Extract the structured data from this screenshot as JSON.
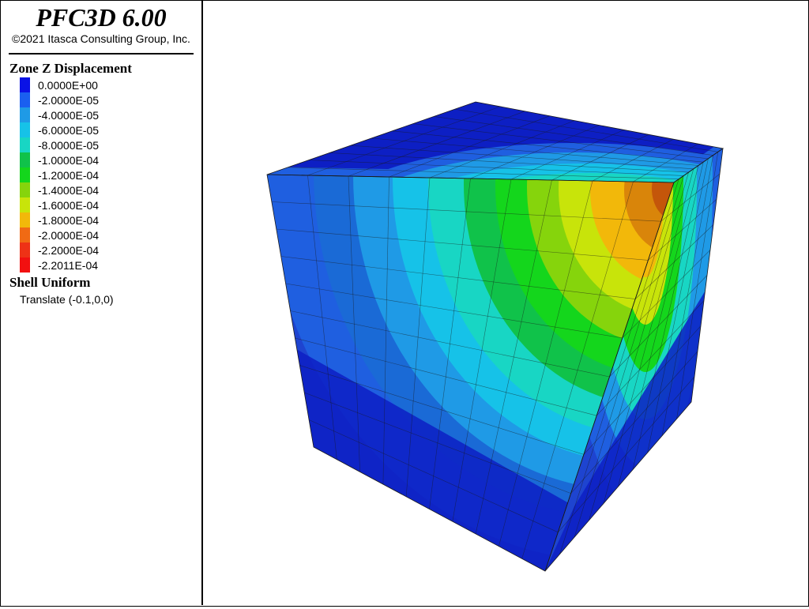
{
  "app": {
    "title": "PFC3D 6.00",
    "copyright": "©2021 Itasca Consulting Group, Inc."
  },
  "legend": {
    "zone_heading": "Zone Z Displacement",
    "contours": [
      {
        "label": "0.0000E+00",
        "color": "#0a12e6"
      },
      {
        "label": "-2.0000E-05",
        "color": "#1a5ff0"
      },
      {
        "label": "-4.0000E-05",
        "color": "#1f9ae6"
      },
      {
        "label": "-6.0000E-05",
        "color": "#16c2e8"
      },
      {
        "label": "-8.0000E-05",
        "color": "#18d6c4"
      },
      {
        "label": "-1.0000E-04",
        "color": "#10c24a"
      },
      {
        "label": "-1.2000E-04",
        "color": "#14d61c"
      },
      {
        "label": "-1.4000E-04",
        "color": "#86d40c"
      },
      {
        "label": "-1.6000E-04",
        "color": "#c8e40a"
      },
      {
        "label": "-1.8000E-04",
        "color": "#f2b80a"
      },
      {
        "label": "-2.0000E-04",
        "color": "#f06a14"
      },
      {
        "label": "-2.2000E-04",
        "color": "#ee3216"
      },
      {
        "label": "-2.2011E-04",
        "color": "#f21010"
      }
    ],
    "shell_heading": "Shell Uniform",
    "shell_item": "Translate (-0.1,0,0)"
  },
  "model": {
    "face_colors": {
      "top_outer": "#1f5fe0",
      "left_outer": "#1e44d0",
      "right_outer": "#1e44d0",
      "bottom_band": "#0d1fc4",
      "grid_line": "#1a1a1a"
    }
  }
}
